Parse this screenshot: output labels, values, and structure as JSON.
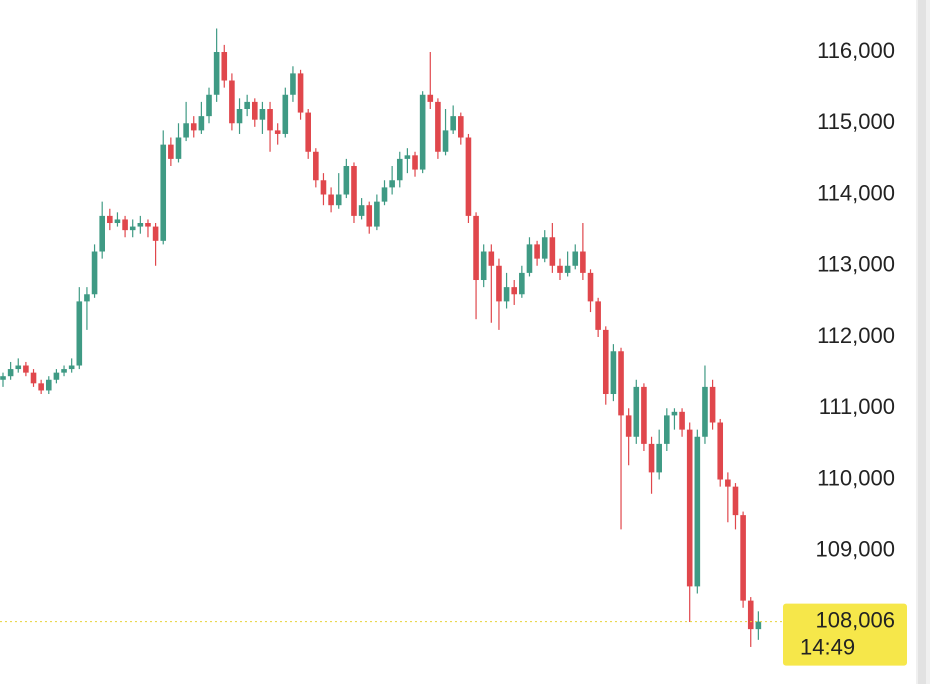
{
  "chart_data": {
    "type": "candlestick",
    "up_color": "#3f9a84",
    "down_color": "#e0474c",
    "ylim": [
      107130,
      116730
    ],
    "yticks": [
      {
        "value": 109000,
        "label": "109,000"
      },
      {
        "value": 110000,
        "label": "110,000"
      },
      {
        "value": 111000,
        "label": "111,000"
      },
      {
        "value": 112000,
        "label": "112,000"
      },
      {
        "value": 113000,
        "label": "113,000"
      },
      {
        "value": 114000,
        "label": "114,000"
      },
      {
        "value": 115000,
        "label": "115,000"
      },
      {
        "value": 116000,
        "label": "116,000"
      }
    ],
    "grid": false,
    "last_price": {
      "value": 108006,
      "label": "108,006"
    },
    "countdown": "14:49",
    "open": [
      111400,
      111450,
      111550,
      111600,
      111500,
      111350,
      111250,
      111400,
      111500,
      111550,
      111600,
      112500,
      112600,
      113200,
      113700,
      113600,
      113650,
      113500,
      113550,
      113600,
      113550,
      113350,
      114700,
      114500,
      114800,
      115000,
      114900,
      115100,
      115400,
      116000,
      115600,
      115000,
      115200,
      115300,
      115050,
      115200,
      114900,
      114850,
      115400,
      115700,
      115150,
      114600,
      114200,
      114000,
      113850,
      114000,
      114400,
      113700,
      113850,
      113550,
      113900,
      114100,
      114200,
      114500,
      114550,
      114350,
      115400,
      115300,
      114600,
      114900,
      115100,
      114800,
      113700,
      112800,
      113200,
      113000,
      112500,
      112700,
      112600,
      112900,
      113300,
      113100,
      113400,
      113000,
      112900,
      113000,
      113200,
      112900,
      112500,
      112100,
      111200,
      111800,
      110900,
      110600,
      111300,
      110500,
      110100,
      110500,
      110900,
      110950,
      110700,
      108500,
      110600,
      111300,
      110800,
      110000,
      109900,
      109500,
      108300,
      107900
    ],
    "close": [
      111450,
      111550,
      111600,
      111500,
      111350,
      111250,
      111400,
      111500,
      111550,
      111600,
      112500,
      112600,
      113200,
      113700,
      113600,
      113650,
      113500,
      113550,
      113600,
      113550,
      113350,
      114700,
      114500,
      114800,
      115000,
      114900,
      115100,
      115400,
      116000,
      115600,
      115000,
      115200,
      115300,
      115050,
      115200,
      114900,
      114850,
      115400,
      115700,
      115150,
      114600,
      114200,
      114000,
      113850,
      114000,
      114400,
      113700,
      113850,
      113550,
      113900,
      114100,
      114200,
      114500,
      114550,
      114350,
      115400,
      115300,
      114600,
      114900,
      115100,
      114800,
      113700,
      112800,
      113200,
      113000,
      112500,
      112700,
      112600,
      112900,
      113300,
      113100,
      113400,
      113000,
      112900,
      113000,
      113200,
      112900,
      112500,
      112100,
      111200,
      111800,
      110900,
      110600,
      111300,
      110500,
      110100,
      110500,
      110900,
      110950,
      110700,
      108500,
      110600,
      111300,
      110800,
      110000,
      109900,
      109500,
      108300,
      107900,
      108006
    ],
    "high": [
      111500,
      111650,
      111700,
      111650,
      111550,
      111400,
      111450,
      111550,
      111600,
      111700,
      112700,
      112700,
      113300,
      113900,
      113800,
      113750,
      113700,
      113650,
      113700,
      113650,
      113600,
      114900,
      114800,
      115000,
      115300,
      115100,
      115300,
      115500,
      116330,
      116100,
      115700,
      115350,
      115400,
      115350,
      115300,
      115300,
      115000,
      115500,
      115800,
      115750,
      115200,
      114650,
      114300,
      114100,
      114300,
      114500,
      114450,
      113950,
      113900,
      114000,
      114200,
      114400,
      114600,
      114650,
      114600,
      115450,
      116000,
      115350,
      115200,
      115250,
      115150,
      114850,
      113750,
      113300,
      113300,
      113100,
      112900,
      112800,
      113000,
      113400,
      113350,
      113500,
      113600,
      113100,
      113200,
      113300,
      113600,
      112950,
      112550,
      112150,
      111900,
      111850,
      111000,
      111400,
      111350,
      110600,
      110700,
      111000,
      111000,
      111000,
      110800,
      110700,
      111600,
      111400,
      110850,
      110100,
      109950,
      109550,
      108350,
      108150
    ],
    "low": [
      111300,
      111400,
      111500,
      111450,
      111300,
      111200,
      111200,
      111350,
      111450,
      111500,
      111550,
      112100,
      112550,
      113100,
      113500,
      113550,
      113400,
      113400,
      113450,
      113400,
      113000,
      113300,
      114400,
      114450,
      114750,
      114800,
      114850,
      115000,
      115300,
      115500,
      114900,
      114850,
      115100,
      114950,
      114850,
      114600,
      114700,
      114800,
      115300,
      115050,
      114500,
      114100,
      113850,
      113750,
      113800,
      113950,
      113600,
      113650,
      113450,
      113500,
      113850,
      114000,
      114100,
      114300,
      114250,
      114300,
      115200,
      114500,
      114550,
      114850,
      114700,
      113600,
      112250,
      112700,
      112200,
      112100,
      112400,
      112450,
      112550,
      112850,
      113000,
      113050,
      112900,
      112800,
      112850,
      112950,
      112800,
      112350,
      112000,
      111050,
      111100,
      109300,
      110200,
      110500,
      110400,
      109800,
      110000,
      110400,
      110700,
      110600,
      108000,
      108400,
      110500,
      110700,
      109900,
      109400,
      109300,
      108200,
      107650,
      107750
    ]
  }
}
